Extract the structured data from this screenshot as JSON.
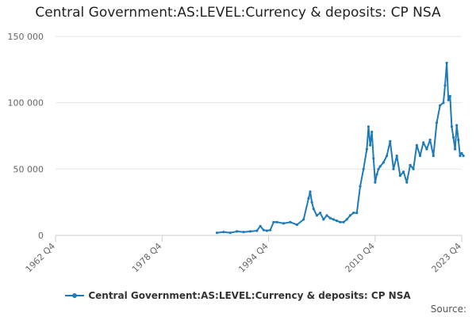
{
  "chart_data": {
    "type": "line",
    "title": "Central Government:AS:LEVEL:Currency & deposits: CP NSA",
    "xlabel": "",
    "ylabel": "",
    "x_tick_labels": [
      "1962 Q4",
      "1978 Q4",
      "1994 Q4",
      "2010 Q4",
      "2023 Q4"
    ],
    "y_tick_labels": [
      "0",
      "50 000",
      "100 000",
      "150 000"
    ],
    "y_ticks": [
      0,
      50000,
      100000,
      150000
    ],
    "ylim": [
      0,
      150000
    ],
    "xlim": [
      "1962 Q4",
      "2023 Q4"
    ],
    "grid": "horizontal",
    "legend_position": "bottom",
    "series": [
      {
        "name": "Central Government:AS:LEVEL:Currency & deposits: CP NSA",
        "color": "#1f7ab8",
        "x": [
          "1987 Q1",
          "1988 Q1",
          "1989 Q1",
          "1990 Q1",
          "1991 Q1",
          "1992 Q1",
          "1993 Q1",
          "1993 Q3",
          "1994 Q1",
          "1994 Q3",
          "1995 Q1",
          "1995 Q3",
          "1996 Q1",
          "1997 Q1",
          "1998 Q1",
          "1999 Q1",
          "2000 Q1",
          "2000 Q4",
          "2001 Q1",
          "2001 Q2",
          "2001 Q3",
          "2002 Q1",
          "2002 Q3",
          "2003 Q1",
          "2003 Q3",
          "2004 Q1",
          "2004 Q3",
          "2005 Q1",
          "2005 Q3",
          "2006 Q1",
          "2006 Q3",
          "2007 Q1",
          "2007 Q3",
          "2008 Q1",
          "2008 Q3",
          "2009 Q1",
          "2009 Q3",
          "2009 Q4",
          "2010 Q1",
          "2010 Q2",
          "2010 Q3",
          "2010 Q4",
          "2011 Q1",
          "2011 Q2",
          "2011 Q3",
          "2012 Q1",
          "2012 Q3",
          "2013 Q1",
          "2013 Q3",
          "2014 Q1",
          "2014 Q3",
          "2015 Q1",
          "2015 Q3",
          "2016 Q1",
          "2016 Q3",
          "2017 Q1",
          "2017 Q3",
          "2018 Q1",
          "2018 Q3",
          "2019 Q1",
          "2019 Q3",
          "2020 Q1",
          "2020 Q3",
          "2021 Q1",
          "2021 Q2",
          "2021 Q3",
          "2021 Q4",
          "2022 Q1",
          "2022 Q2",
          "2022 Q3",
          "2022 Q4",
          "2023 Q1",
          "2023 Q2",
          "2023 Q3",
          "2023 Q4",
          "2024 Q1"
        ],
        "values": [
          2000,
          2500,
          2000,
          3000,
          2500,
          3000,
          3500,
          7000,
          4000,
          3500,
          4000,
          10000,
          10000,
          9000,
          10000,
          8000,
          12000,
          28000,
          33000,
          25000,
          20000,
          15000,
          17000,
          12000,
          15000,
          13000,
          12000,
          11000,
          10000,
          10000,
          12000,
          15000,
          17000,
          17000,
          37000,
          50000,
          65000,
          82000,
          68000,
          78000,
          58000,
          40000,
          46000,
          50000,
          52000,
          55000,
          60000,
          71000,
          50000,
          60000,
          45000,
          48000,
          40000,
          53000,
          50000,
          68000,
          60000,
          70000,
          65000,
          72000,
          60000,
          85000,
          98000,
          100000,
          113000,
          130000,
          102000,
          105000,
          82000,
          74000,
          65000,
          83000,
          72000,
          60000,
          62000,
          60000
        ]
      }
    ]
  },
  "legend": {
    "label": "Central Government:AS:LEVEL:Currency & deposits: CP NSA"
  },
  "credits": "Source:"
}
